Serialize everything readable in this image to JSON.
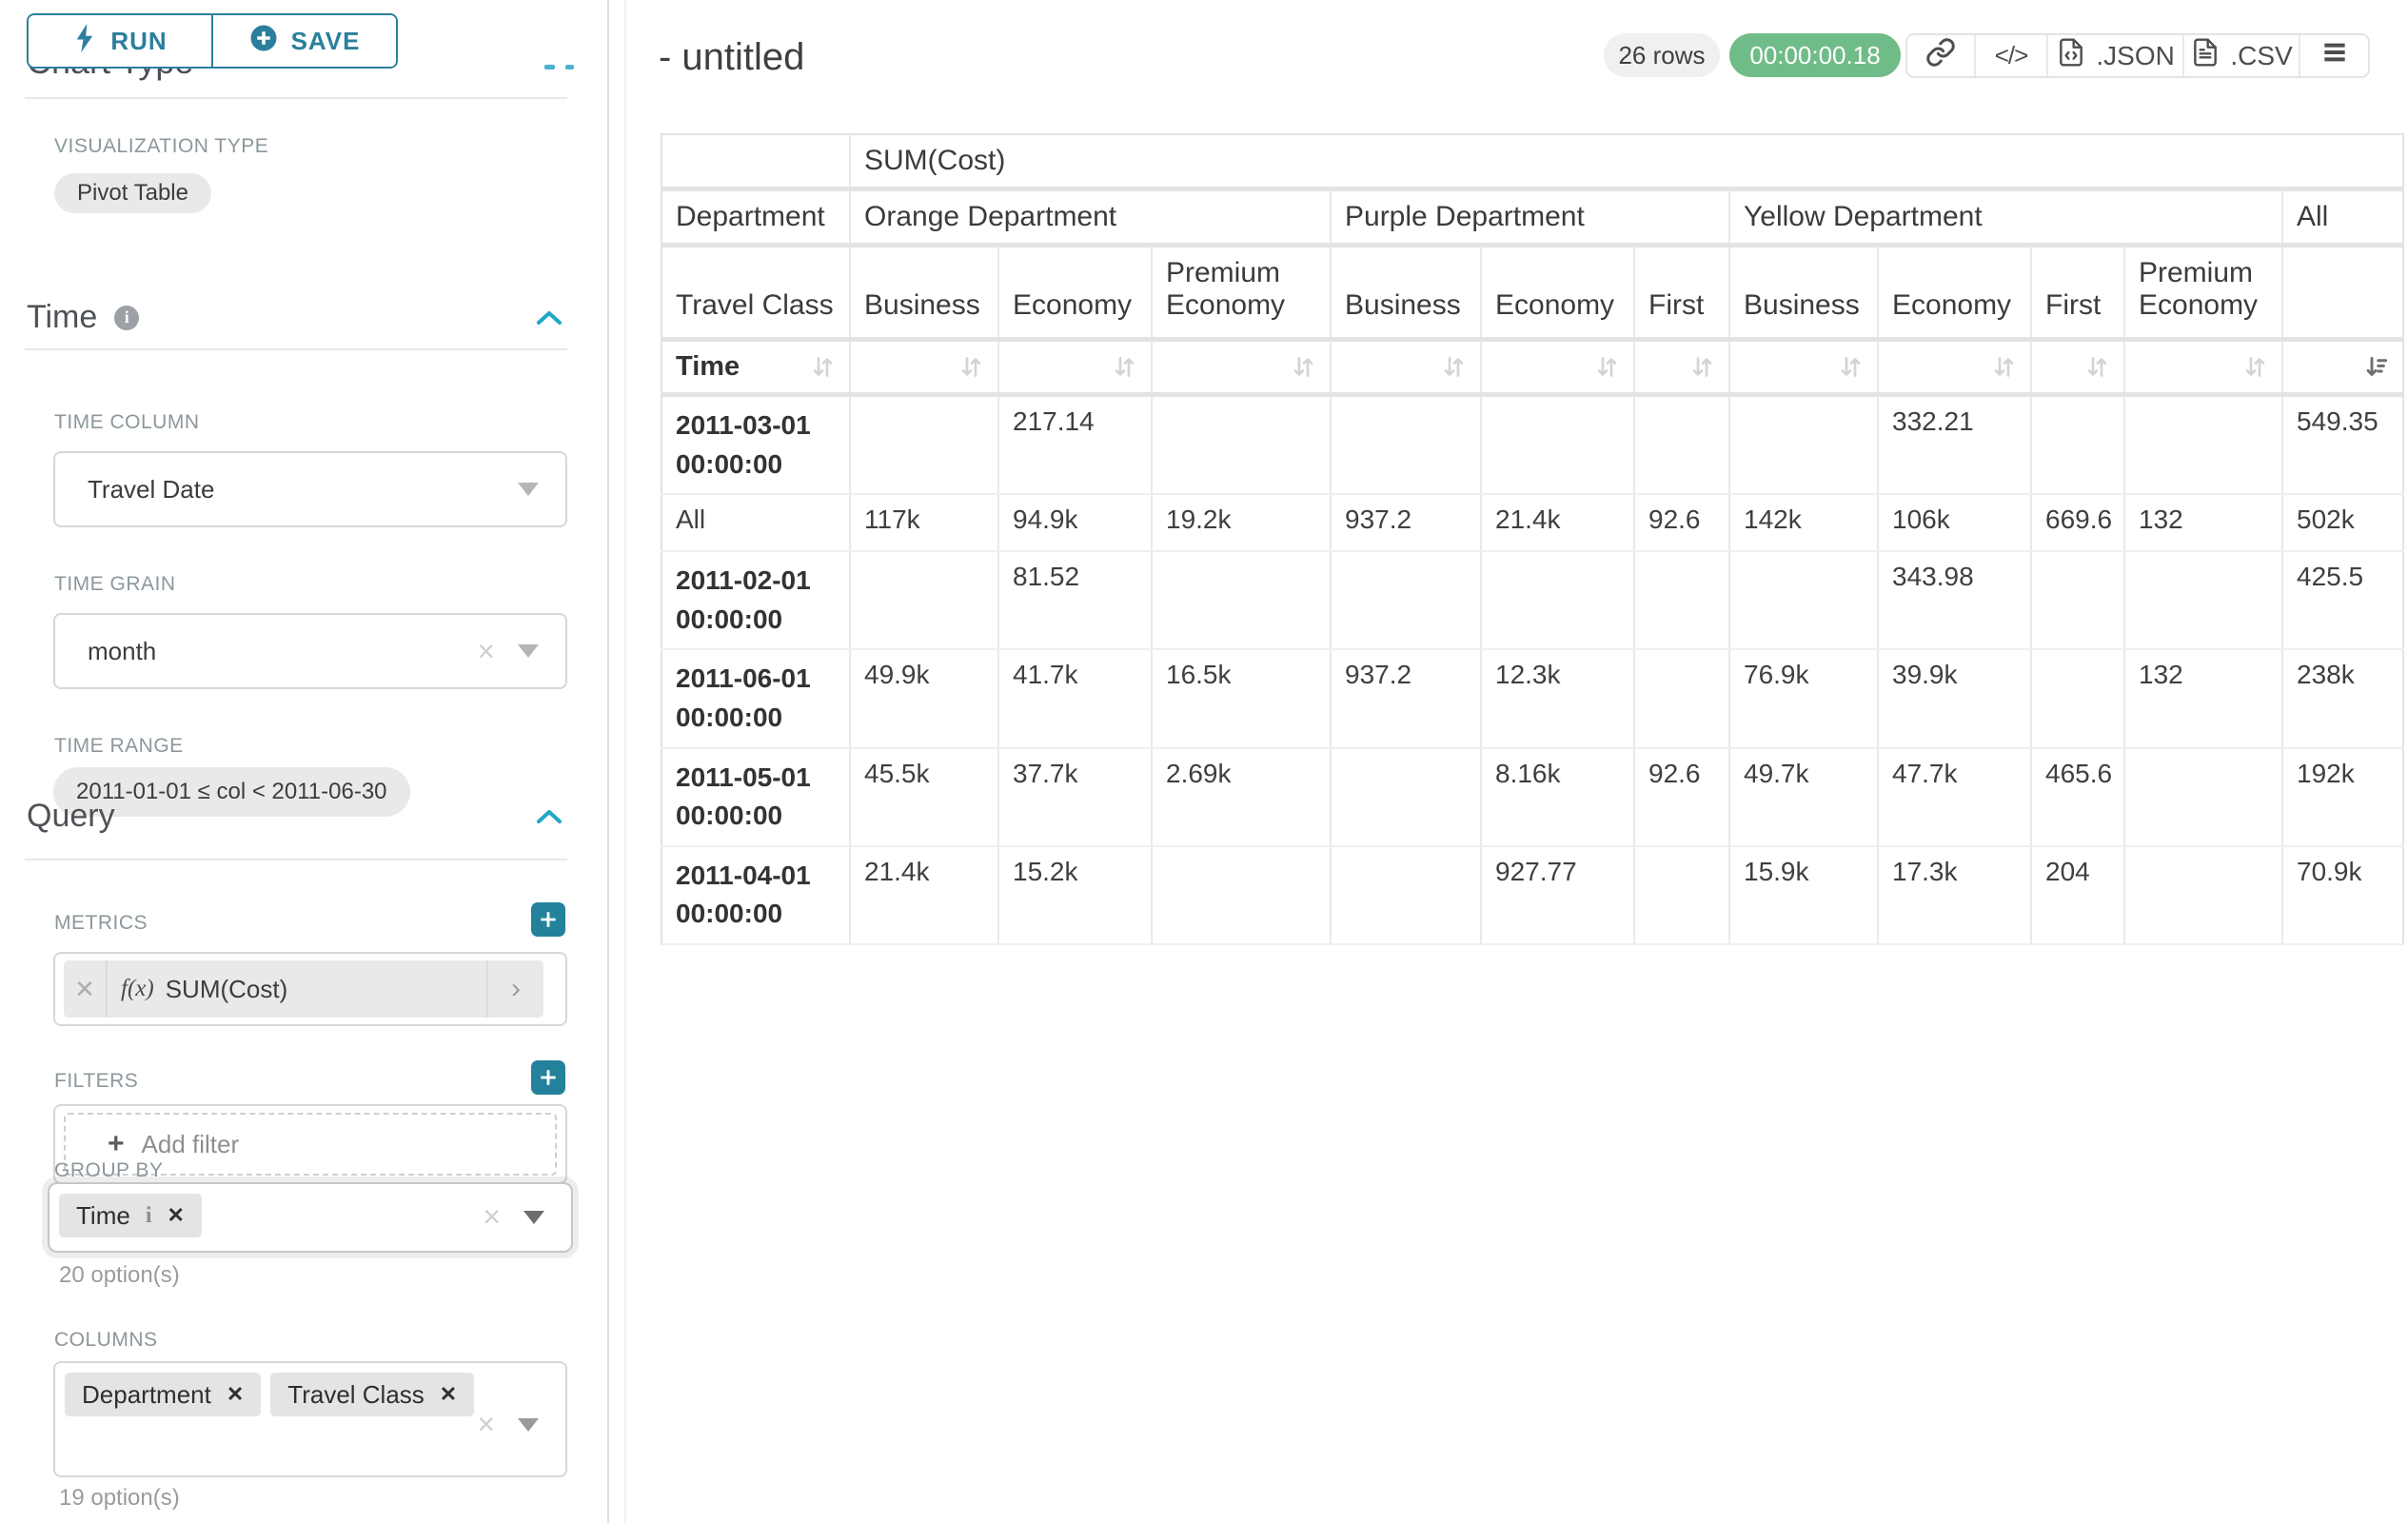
{
  "colors": {
    "accent_teal": "#2b7f9d",
    "plus_button_teal": "#24819c",
    "chevron_blue": "#1fa8c9",
    "timer_green": "#70bc88",
    "chip_gray": "#e4e4e4"
  },
  "sidebar": {
    "run_label": "RUN",
    "save_label": "SAVE",
    "clipped_section_title": "Chart Type",
    "visualization_type_label": "VISUALIZATION TYPE",
    "visualization_type_value": "Pivot Table",
    "time_section": {
      "title": "Time",
      "time_column_label": "TIME COLUMN",
      "time_column_value": "Travel Date",
      "time_grain_label": "TIME GRAIN",
      "time_grain_value": "month",
      "time_range_label": "TIME RANGE",
      "time_range_value": "2011-01-01 ≤ col < 2011-06-30"
    },
    "query_section": {
      "title": "Query",
      "metrics_label": "METRICS",
      "metric_fx": "f(x)",
      "metric_value": "SUM(Cost)",
      "filters_label": "FILTERS",
      "add_filter_label": "Add filter",
      "group_by_label": "GROUP BY",
      "group_by_chips": [
        {
          "label": "Time",
          "info": true
        }
      ],
      "group_by_hint": "20 option(s)",
      "columns_label": "COLUMNS",
      "columns_chips": [
        {
          "label": "Department",
          "info": false
        },
        {
          "label": "Travel Class",
          "info": false
        }
      ],
      "columns_hint": "19 option(s)"
    }
  },
  "header": {
    "title": "- untitled",
    "row_count": "26 rows",
    "timer": "00:00:00.18",
    "export_json_label": ".JSON",
    "export_csv_label": ".CSV"
  },
  "chart_data": {
    "type": "table",
    "metric": "SUM(Cost)",
    "row_dimension_label": "Department",
    "row_dimension2_label": "Travel Class",
    "row_axis_label": "Time",
    "column_groups": [
      {
        "label": "Orange Department",
        "children": [
          "Business",
          "Economy",
          "Premium Economy"
        ]
      },
      {
        "label": "Purple Department",
        "children": [
          "Business",
          "Economy",
          "First"
        ]
      },
      {
        "label": "Yellow Department",
        "children": [
          "Business",
          "Economy",
          "First",
          "Premium Economy"
        ]
      },
      {
        "label": "All",
        "children": [
          ""
        ]
      }
    ],
    "sorted_column_index": 10,
    "sort_direction": "descending",
    "rows": [
      {
        "label": "2011-03-01 00:00:00",
        "bold": true,
        "values": [
          "",
          "217.14",
          "",
          "",
          "",
          "",
          "",
          "332.21",
          "",
          "",
          "549.35"
        ]
      },
      {
        "label": "All",
        "bold": false,
        "values": [
          "117k",
          "94.9k",
          "19.2k",
          "937.2",
          "21.4k",
          "92.6",
          "142k",
          "106k",
          "669.6",
          "132",
          "502k"
        ]
      },
      {
        "label": "2011-02-01 00:00:00",
        "bold": true,
        "values": [
          "",
          "81.52",
          "",
          "",
          "",
          "",
          "",
          "343.98",
          "",
          "",
          "425.5"
        ]
      },
      {
        "label": "2011-06-01 00:00:00",
        "bold": true,
        "values": [
          "49.9k",
          "41.7k",
          "16.5k",
          "937.2",
          "12.3k",
          "",
          "76.9k",
          "39.9k",
          "",
          "132",
          "238k"
        ]
      },
      {
        "label": "2011-05-01 00:00:00",
        "bold": true,
        "values": [
          "45.5k",
          "37.7k",
          "2.69k",
          "",
          "8.16k",
          "92.6",
          "49.7k",
          "47.7k",
          "465.6",
          "",
          "192k"
        ]
      },
      {
        "label": "2011-04-01 00:00:00",
        "bold": true,
        "values": [
          "21.4k",
          "15.2k",
          "",
          "",
          "927.77",
          "",
          "15.9k",
          "17.3k",
          "204",
          "",
          "70.9k"
        ]
      }
    ]
  }
}
